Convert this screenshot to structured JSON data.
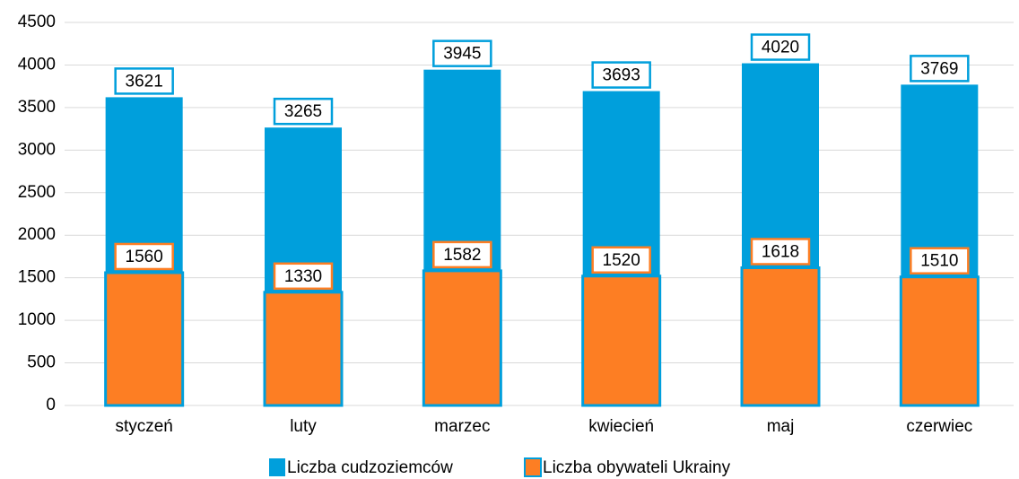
{
  "chart_data": {
    "type": "bar",
    "overlap": true,
    "categories": [
      "styczeń",
      "luty",
      "marzec",
      "kwiecień",
      "maj",
      "czerwiec"
    ],
    "series": [
      {
        "name": "Liczba cudzoziemców",
        "color": "#009fdc",
        "values": [
          3621,
          3265,
          3945,
          3693,
          4020,
          3769
        ]
      },
      {
        "name": "Liczba obywateli Ukrainy",
        "color": "#fd7e23",
        "values": [
          1560,
          1330,
          1582,
          1520,
          1618,
          1510
        ]
      }
    ],
    "ylim": [
      0,
      4500
    ],
    "yticks": [
      0,
      500,
      1000,
      1500,
      2000,
      2500,
      3000,
      3500,
      4000,
      4500
    ],
    "grid": true,
    "legend": "bottom"
  }
}
